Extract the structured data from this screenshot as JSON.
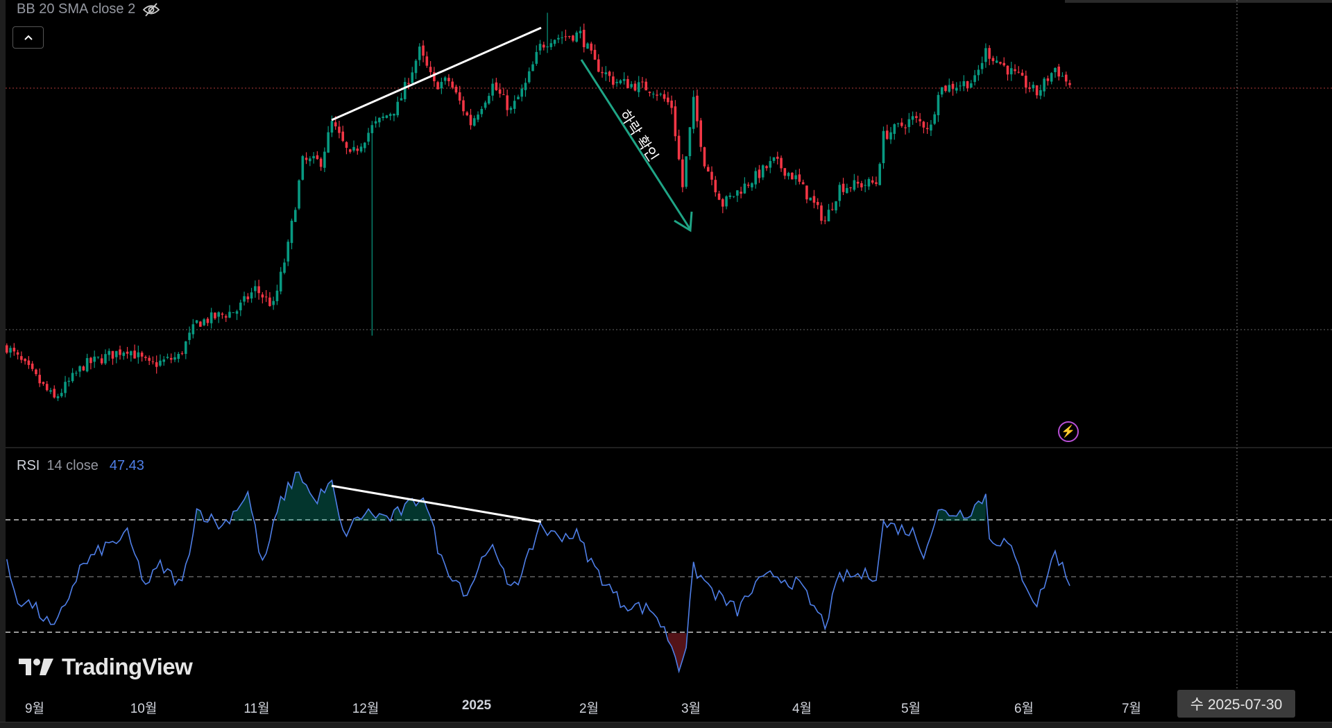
{
  "legend": {
    "bb": "BB 20 SMA close 2",
    "rsi_name": "RSI",
    "rsi_params": "14 close",
    "rsi_value": "47.43"
  },
  "annotation": "하락 확인",
  "time_axis": [
    "9월",
    "10월",
    "11월",
    "12월",
    "2025",
    "2월",
    "3월",
    "4월",
    "5월",
    "6월",
    "7월"
  ],
  "crosshair_date": "수 2025-07-30",
  "logo_text": "TradingView",
  "colors": {
    "up": "#089981",
    "down": "#f23645",
    "rsi": "#4f7fe8",
    "arrow": "#1fa586",
    "bolt": "#b84fd6"
  },
  "chart_data": {
    "type": "candlestick",
    "note": "relative price index, x = trading-day index",
    "price_keypoints": [
      [
        0,
        92
      ],
      [
        7,
        60
      ],
      [
        13,
        30
      ],
      [
        21,
        70
      ],
      [
        33,
        90
      ],
      [
        39,
        70
      ],
      [
        47,
        80
      ],
      [
        52,
        120
      ],
      [
        63,
        135
      ],
      [
        68,
        160
      ],
      [
        73,
        140
      ],
      [
        77,
        210
      ],
      [
        81,
        310
      ],
      [
        86,
        310
      ],
      [
        89,
        355
      ],
      [
        94,
        315
      ],
      [
        100,
        350
      ],
      [
        107,
        375
      ],
      [
        113,
        440
      ],
      [
        117,
        400
      ],
      [
        121,
        405
      ],
      [
        127,
        355
      ],
      [
        133,
        400
      ],
      [
        138,
        370
      ],
      [
        142,
        400
      ],
      [
        146,
        445
      ],
      [
        149,
        455
      ],
      [
        157,
        460
      ],
      [
        161,
        425
      ],
      [
        166,
        405
      ],
      [
        177,
        395
      ],
      [
        182,
        375
      ],
      [
        185,
        280
      ],
      [
        188,
        380
      ],
      [
        191,
        310
      ],
      [
        196,
        260
      ],
      [
        203,
        285
      ],
      [
        210,
        310
      ],
      [
        216,
        290
      ],
      [
        224,
        240
      ],
      [
        228,
        280
      ],
      [
        238,
        285
      ],
      [
        240,
        340
      ],
      [
        248,
        360
      ],
      [
        253,
        350
      ],
      [
        255,
        395
      ],
      [
        265,
        405
      ],
      [
        268,
        440
      ],
      [
        275,
        415
      ],
      [
        282,
        390
      ],
      [
        287,
        420
      ],
      [
        291,
        400
      ]
    ],
    "special_lows": [
      [
        100,
        105
      ]
    ],
    "special_highs": [
      [
        148,
        485
      ]
    ],
    "rsi": {
      "levels": [
        70,
        50,
        30
      ],
      "keypoints": [
        [
          0,
          54
        ],
        [
          3,
          42
        ],
        [
          7,
          40
        ],
        [
          13,
          31
        ],
        [
          20,
          53
        ],
        [
          26,
          60
        ],
        [
          33,
          65
        ],
        [
          38,
          47
        ],
        [
          42,
          54
        ],
        [
          48,
          47
        ],
        [
          52,
          74
        ],
        [
          59,
          68
        ],
        [
          66,
          80
        ],
        [
          70,
          54
        ],
        [
          75,
          77
        ],
        [
          80,
          88
        ],
        [
          84,
          77
        ],
        [
          89,
          83
        ],
        [
          92,
          65
        ],
        [
          98,
          73
        ],
        [
          105,
          71
        ],
        [
          112,
          77
        ],
        [
          114,
          80
        ],
        [
          119,
          56
        ],
        [
          126,
          44
        ],
        [
          132,
          62
        ],
        [
          137,
          48
        ],
        [
          141,
          50
        ],
        [
          146,
          69
        ],
        [
          149,
          65
        ],
        [
          156,
          65
        ],
        [
          161,
          53
        ],
        [
          168,
          41
        ],
        [
          177,
          38
        ],
        [
          182,
          26
        ],
        [
          184,
          18
        ],
        [
          186,
          26
        ],
        [
          188,
          53
        ],
        [
          194,
          44
        ],
        [
          200,
          38
        ],
        [
          205,
          47
        ],
        [
          210,
          51
        ],
        [
          217,
          47
        ],
        [
          224,
          33
        ],
        [
          228,
          50
        ],
        [
          238,
          51
        ],
        [
          240,
          69
        ],
        [
          248,
          66
        ],
        [
          251,
          59
        ],
        [
          255,
          73
        ],
        [
          263,
          73
        ],
        [
          268,
          79
        ],
        [
          269,
          64
        ],
        [
          274,
          62
        ],
        [
          277,
          53
        ],
        [
          282,
          40
        ],
        [
          287,
          59
        ],
        [
          291,
          48
        ]
      ]
    }
  }
}
